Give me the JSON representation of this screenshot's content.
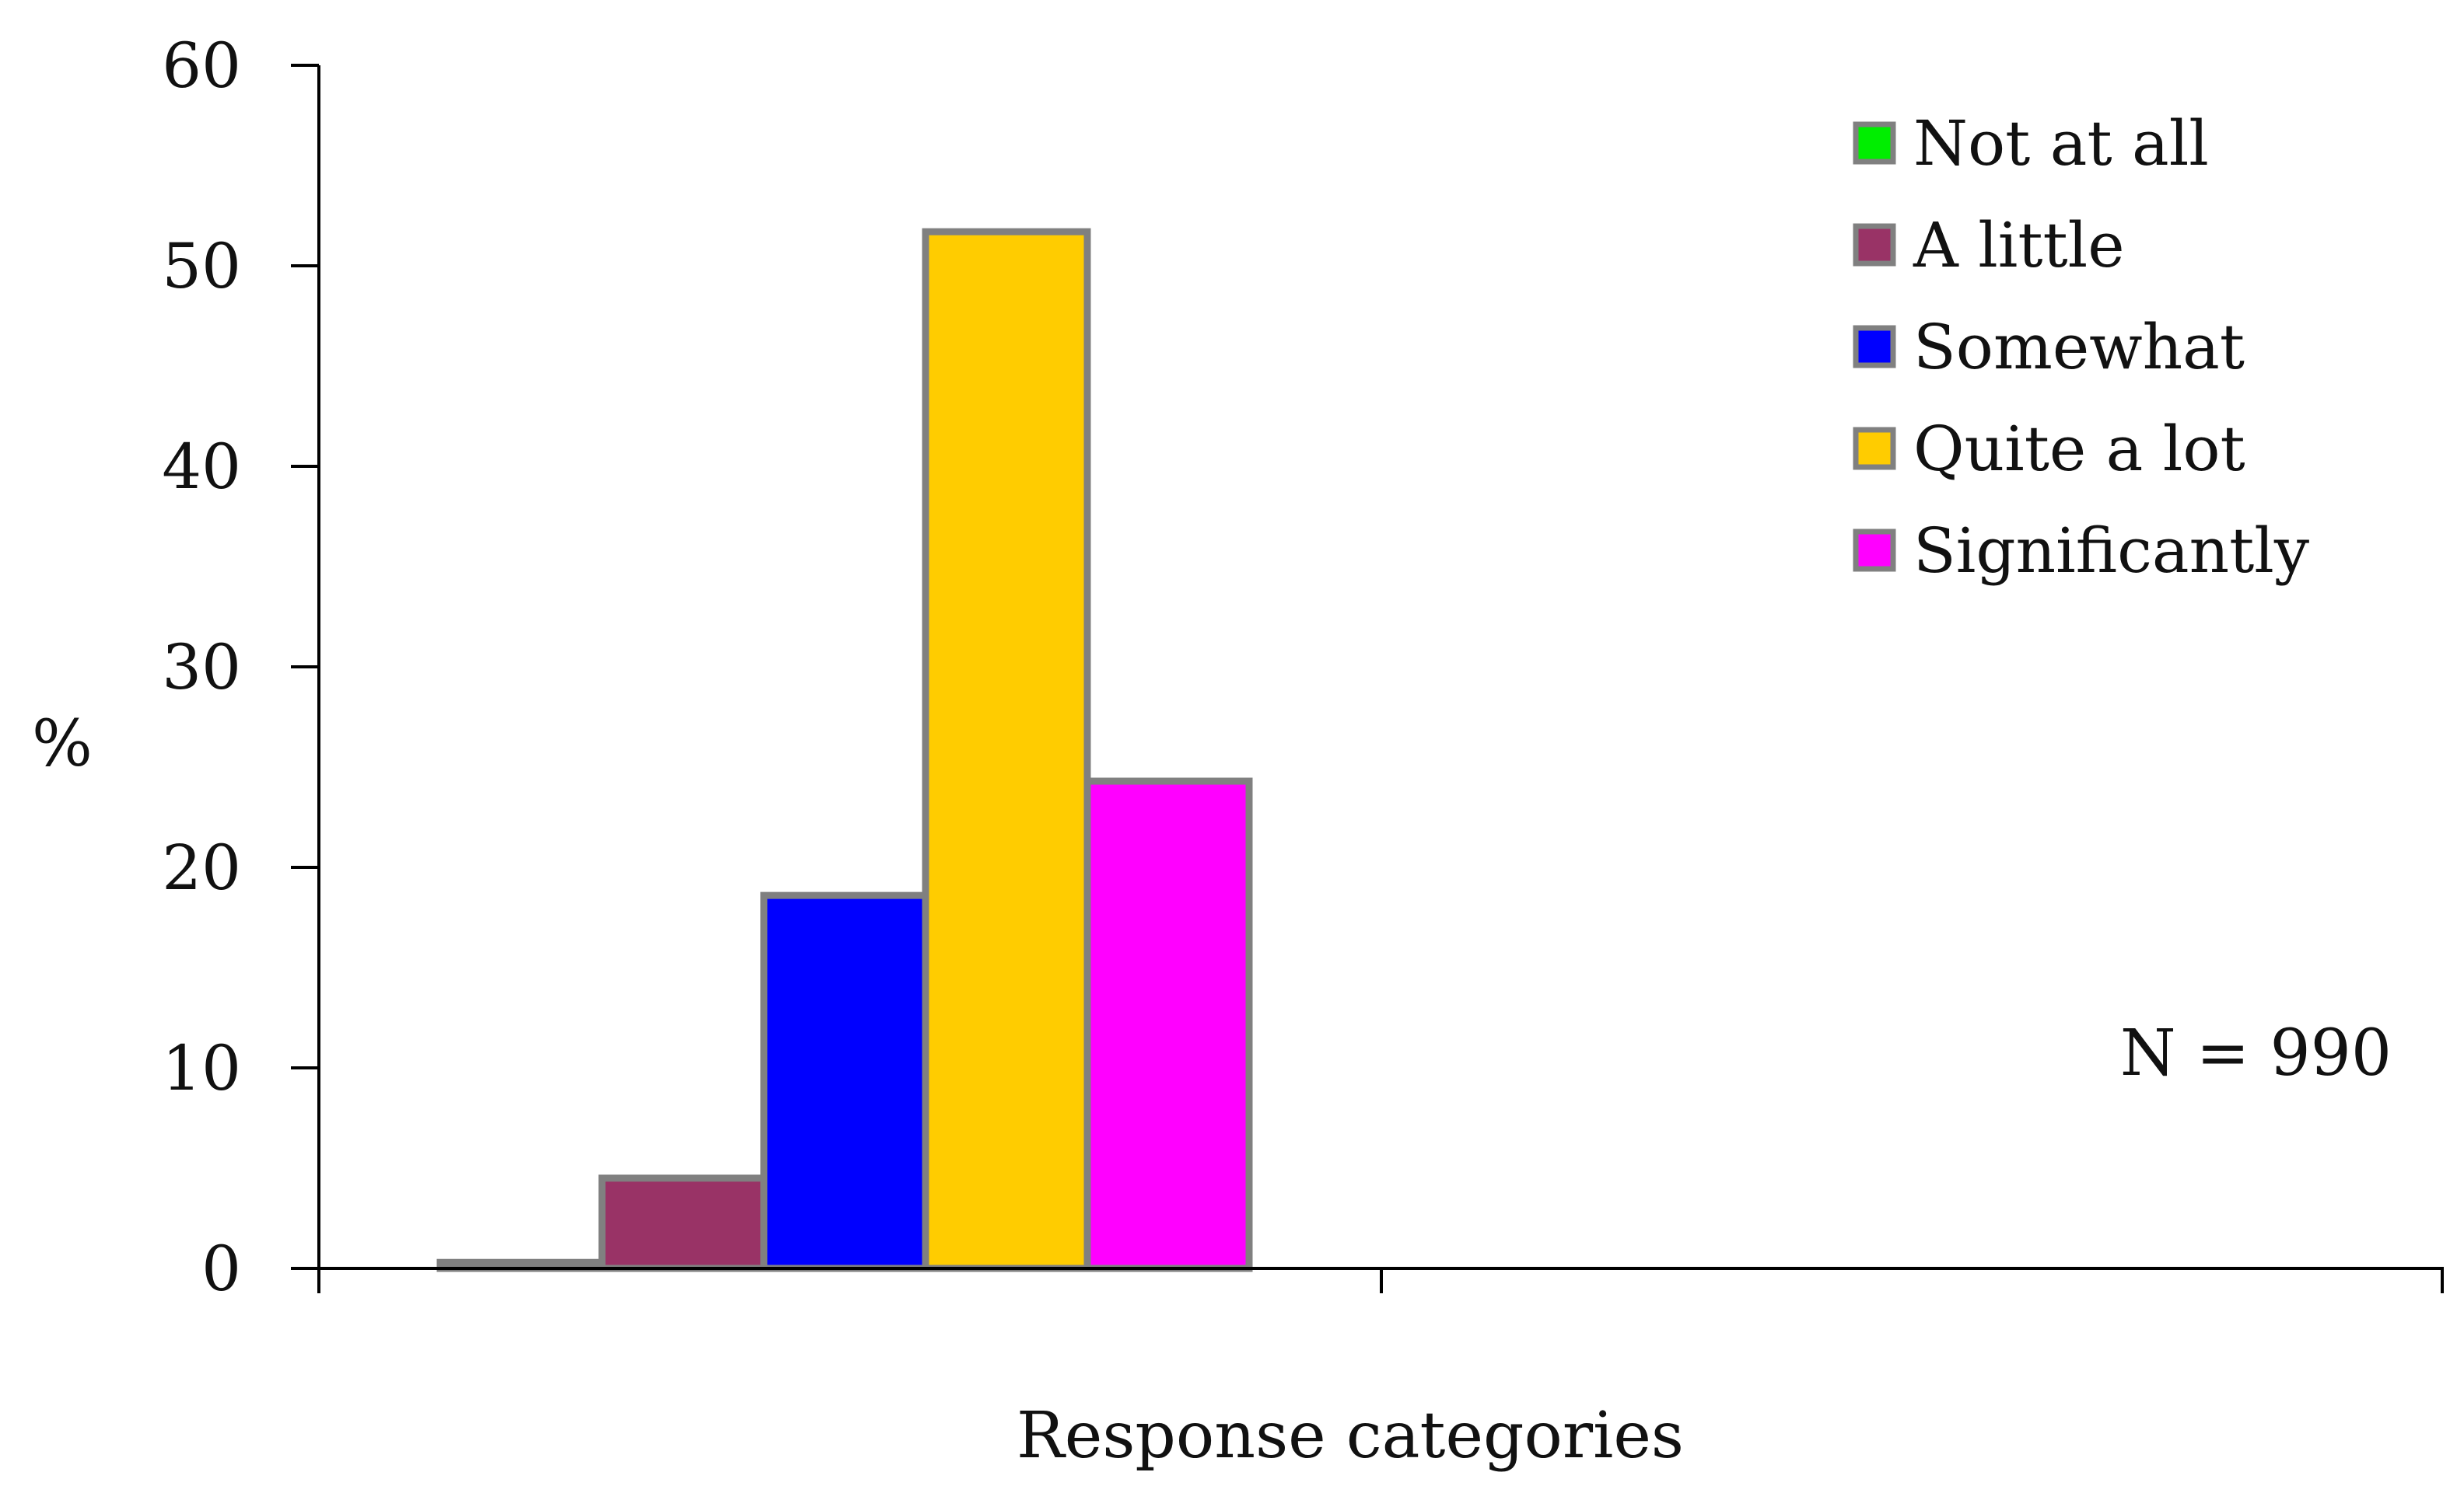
{
  "chart_data": {
    "type": "bar",
    "ylabel": "%",
    "xlabel": "Response categories",
    "ylim": [
      0,
      60
    ],
    "yticks": [
      0,
      10,
      20,
      30,
      40,
      50,
      60
    ],
    "grid": false,
    "legend_position": "top-right",
    "annotation": "N = 990",
    "series": [
      {
        "name": "Not at all",
        "value": 0.3,
        "color": "#00ee00"
      },
      {
        "name": "A little",
        "value": 4.5,
        "color": "#993366"
      },
      {
        "name": "Somewhat",
        "value": 18.6,
        "color": "#0000ff"
      },
      {
        "name": "Quite a lot",
        "value": 51.7,
        "color": "#ffcc00"
      },
      {
        "name": "Significantly",
        "value": 24.3,
        "color": "#ff00ff"
      }
    ]
  }
}
